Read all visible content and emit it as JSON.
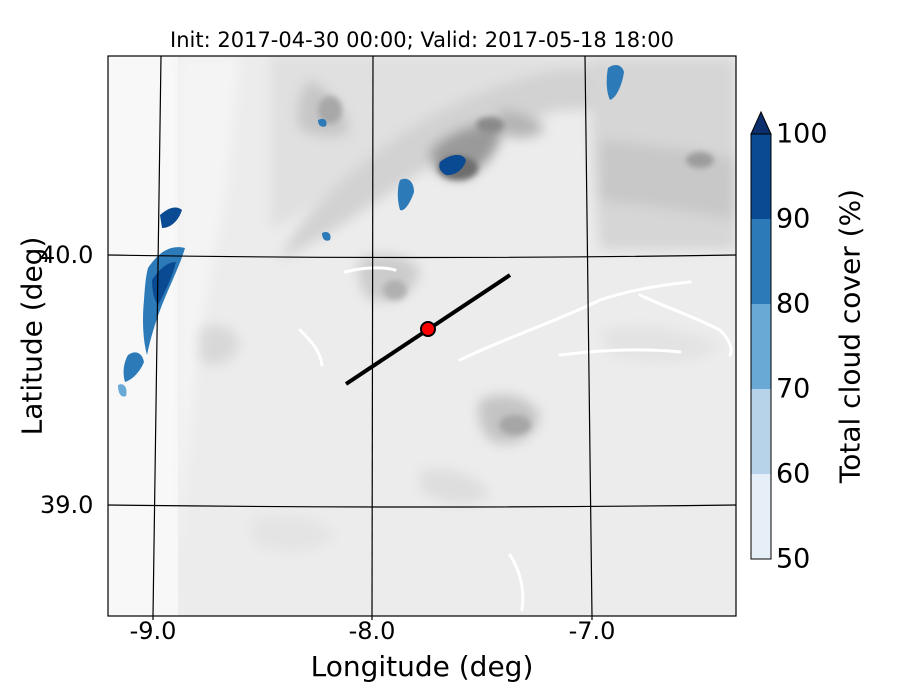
{
  "title": "Init: 2017-04-30 00:00; Valid: 2017-05-18 18:00",
  "xlabel": "Longitude (deg)",
  "ylabel": "Latitude (deg)",
  "map": {
    "lon_range": [
      -9.25,
      -6.35
    ],
    "lat_range": [
      38.55,
      40.8
    ],
    "x_ticks": [
      "-9.0",
      "-8.0",
      "-7.0"
    ],
    "y_ticks": [
      "40.0",
      "39.0"
    ],
    "background": "grayscale terrain contours",
    "cross_section_line": {
      "start": [
        -8.12,
        39.48
      ],
      "end": [
        -7.37,
        39.93
      ]
    },
    "marker": {
      "lon": -7.75,
      "lat": 39.7,
      "color": "#ff0000"
    }
  },
  "colorbar": {
    "label": "Total cloud cover (%)",
    "ticks": [
      "50",
      "60",
      "70",
      "80",
      "90",
      "100"
    ],
    "levels": [
      50,
      60,
      70,
      80,
      90,
      100
    ],
    "colors": [
      "#e6eff8",
      "#b6d3ea",
      "#69a9d6",
      "#2d7ab8",
      "#0a4a92",
      "#0c2f6c"
    ],
    "extend": "max"
  }
}
